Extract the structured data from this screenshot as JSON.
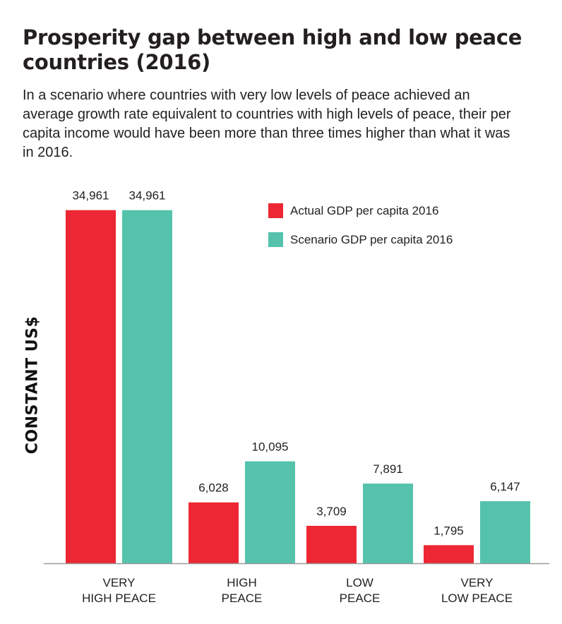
{
  "title": "Prosperity gap between high and low peace countries (2016)",
  "subtitle": "In a scenario where countries with very low levels of peace achieved an average growth rate equivalent to countries with high levels of peace, their per capita income would have been more than three times higher than what it was in 2016.",
  "colors": {
    "actual": "#ed2733",
    "scenario": "#55c3ab",
    "axis": "#999999",
    "text": "#231f20"
  },
  "chart_data": {
    "type": "bar",
    "ylabel": "CONSTANT US$",
    "xlabel": "",
    "ylim": [
      0,
      35500
    ],
    "grid": false,
    "legend_position": "top-right",
    "categories": [
      [
        "VERY",
        "HIGH PEACE"
      ],
      [
        "HIGH",
        "PEACE"
      ],
      [
        "LOW",
        "PEACE"
      ],
      [
        "VERY",
        "LOW PEACE"
      ]
    ],
    "series": [
      {
        "name": "Actual GDP per capita 2016",
        "color": "#ed2733",
        "values": [
          34961,
          6028,
          3709,
          1795
        ],
        "labels": [
          "34,961",
          "6,028",
          "3,709",
          "1,795"
        ]
      },
      {
        "name": "Scenario GDP per capita 2016",
        "color": "#55c3ab",
        "values": [
          34961,
          10095,
          7891,
          6147
        ],
        "labels": [
          "34,961",
          "10,095",
          "7,891",
          "6,147"
        ]
      }
    ]
  }
}
